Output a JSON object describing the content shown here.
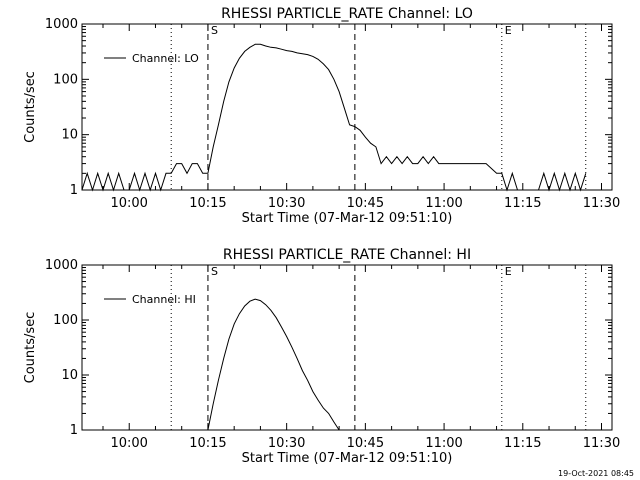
{
  "footer": {
    "timestamp": "19-Oct-2021 08:45"
  },
  "chart_data": [
    {
      "type": "line",
      "title": "RHESSI PARTICLE_RATE Channel: LO",
      "xlabel": "Start Time (07-Mar-12 09:51:10)",
      "ylabel": "Counts/sec",
      "y_scale": "log",
      "xlim": [
        "09:51",
        "11:32"
      ],
      "ylim": [
        1,
        1000
      ],
      "x_ticks": [
        "10:00",
        "10:15",
        "10:30",
        "10:45",
        "11:00",
        "11:15",
        "11:30"
      ],
      "y_ticks": [
        "1",
        "10",
        "100",
        "1000"
      ],
      "legend": {
        "placement": "top-left",
        "entries": [
          "Channel: LO"
        ]
      },
      "markers": [
        {
          "label": "S",
          "time": "10:15",
          "style": "dashed"
        },
        {
          "label": "",
          "time": "10:43",
          "style": "dashed"
        },
        {
          "label": "",
          "time": "10:08",
          "style": "dotted"
        },
        {
          "label": "E",
          "time": "11:11",
          "style": "dotted"
        },
        {
          "label": "",
          "time": "11:27",
          "style": "dotted"
        }
      ],
      "series": [
        {
          "name": "Channel: LO",
          "x": [
            "09:51",
            "09:52",
            "09:53",
            "09:54",
            "09:55",
            "09:56",
            "09:57",
            "09:58",
            "09:59",
            "10:00",
            "10:01",
            "10:02",
            "10:03",
            "10:04",
            "10:05",
            "10:06",
            "10:07",
            "10:08",
            "10:09",
            "10:10",
            "10:11",
            "10:12",
            "10:13",
            "10:14",
            "10:15",
            "10:16",
            "10:17",
            "10:18",
            "10:19",
            "10:20",
            "10:21",
            "10:22",
            "10:23",
            "10:24",
            "10:25",
            "10:26",
            "10:27",
            "10:28",
            "10:29",
            "10:30",
            "10:31",
            "10:32",
            "10:33",
            "10:34",
            "10:35",
            "10:36",
            "10:37",
            "10:38",
            "10:39",
            "10:40",
            "10:41",
            "10:42",
            "10:43",
            "10:44",
            "10:45",
            "10:46",
            "10:47",
            "10:48",
            "10:49",
            "10:50",
            "10:51",
            "10:52",
            "10:53",
            "10:54",
            "10:55",
            "10:56",
            "10:57",
            "10:58",
            "10:59",
            "11:00",
            "11:02",
            "11:04",
            "11:06",
            "11:08",
            "11:10",
            "11:11",
            "11:12",
            "11:13",
            "11:14",
            "11:15",
            "11:16",
            "11:17",
            "11:18",
            "11:19",
            "11:20",
            "11:21",
            "11:22",
            "11:23",
            "11:24",
            "11:25",
            "11:26",
            "11:27"
          ],
          "values": [
            1,
            2,
            1,
            2,
            1,
            2,
            1,
            2,
            1,
            1,
            2,
            1,
            2,
            1,
            2,
            1,
            2,
            2,
            3,
            3,
            2,
            3,
            3,
            2,
            2,
            6,
            15,
            40,
            90,
            160,
            240,
            320,
            380,
            430,
            430,
            400,
            380,
            370,
            350,
            330,
            320,
            300,
            290,
            280,
            260,
            230,
            190,
            150,
            100,
            60,
            30,
            15,
            14,
            12,
            9,
            7,
            6,
            3,
            4,
            3,
            4,
            3,
            4,
            3,
            3,
            4,
            3,
            4,
            3,
            3,
            3,
            3,
            3,
            3,
            2,
            2,
            1,
            2,
            1,
            1,
            1,
            1,
            1,
            2,
            1,
            2,
            1,
            2,
            1,
            2,
            1,
            2
          ]
        }
      ]
    },
    {
      "type": "line",
      "title": "RHESSI PARTICLE_RATE Channel: HI",
      "xlabel": "Start Time (07-Mar-12 09:51:10)",
      "ylabel": "Counts/sec",
      "y_scale": "log",
      "xlim": [
        "09:51",
        "11:32"
      ],
      "ylim": [
        1,
        1000
      ],
      "x_ticks": [
        "10:00",
        "10:15",
        "10:30",
        "10:45",
        "11:00",
        "11:15",
        "11:30"
      ],
      "y_ticks": [
        "1",
        "10",
        "100",
        "1000"
      ],
      "legend": {
        "placement": "top-left",
        "entries": [
          "Channel: HI"
        ]
      },
      "markers": [
        {
          "label": "S",
          "time": "10:15",
          "style": "dashed"
        },
        {
          "label": "",
          "time": "10:43",
          "style": "dashed"
        },
        {
          "label": "",
          "time": "10:08",
          "style": "dotted"
        },
        {
          "label": "E",
          "time": "11:11",
          "style": "dotted"
        },
        {
          "label": "",
          "time": "11:27",
          "style": "dotted"
        }
      ],
      "series": [
        {
          "name": "Channel: HI",
          "x": [
            "10:15",
            "10:16",
            "10:17",
            "10:18",
            "10:19",
            "10:20",
            "10:21",
            "10:22",
            "10:23",
            "10:24",
            "10:25",
            "10:26",
            "10:27",
            "10:28",
            "10:29",
            "10:30",
            "10:31",
            "10:32",
            "10:33",
            "10:34",
            "10:35",
            "10:36",
            "10:37",
            "10:38",
            "10:39",
            "10:40"
          ],
          "values": [
            1,
            3,
            8,
            20,
            45,
            85,
            130,
            180,
            220,
            240,
            225,
            190,
            150,
            110,
            75,
            50,
            32,
            20,
            12,
            8,
            5,
            3.5,
            2.5,
            2,
            1.4,
            1
          ]
        }
      ]
    }
  ]
}
